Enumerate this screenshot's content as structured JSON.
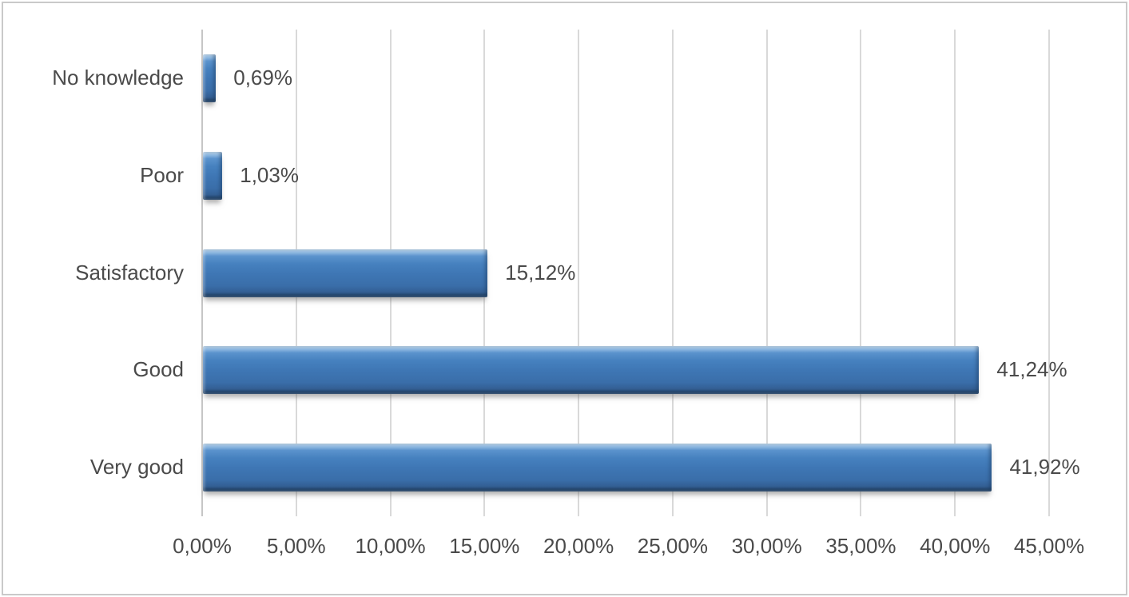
{
  "chart_data": {
    "type": "bar",
    "orientation": "horizontal",
    "title": "",
    "xlabel": "",
    "ylabel": "",
    "grid": true,
    "legend": "none",
    "categories": [
      "No knowledge",
      "Poor",
      "Satisfactory",
      "Good",
      "Very good"
    ],
    "values": [
      0.69,
      1.03,
      15.12,
      41.24,
      41.92
    ],
    "data_labels": [
      "0,69%",
      "1,03%",
      "15,12%",
      "41,24%",
      "41,92%"
    ],
    "x_axis": {
      "min": 0,
      "max": 45,
      "ticks": [
        0,
        5,
        10,
        15,
        20,
        25,
        30,
        35,
        40,
        45
      ],
      "tick_labels": [
        "0,00%",
        "5,00%",
        "10,00%",
        "15,00%",
        "20,00%",
        "25,00%",
        "30,00%",
        "35,00%",
        "40,00%",
        "45,00%"
      ]
    },
    "colors": {
      "bar_fill": "#3E76B4",
      "bar_highlight": "#9CC2E6",
      "bar_dark_edge": "#1F3D60",
      "gridline": "#D9D9D9",
      "axis_line": "#C6C6C6",
      "text": "#4A4A4A",
      "frame_border": "#C9C9C9",
      "background": "#FFFFFF"
    }
  }
}
